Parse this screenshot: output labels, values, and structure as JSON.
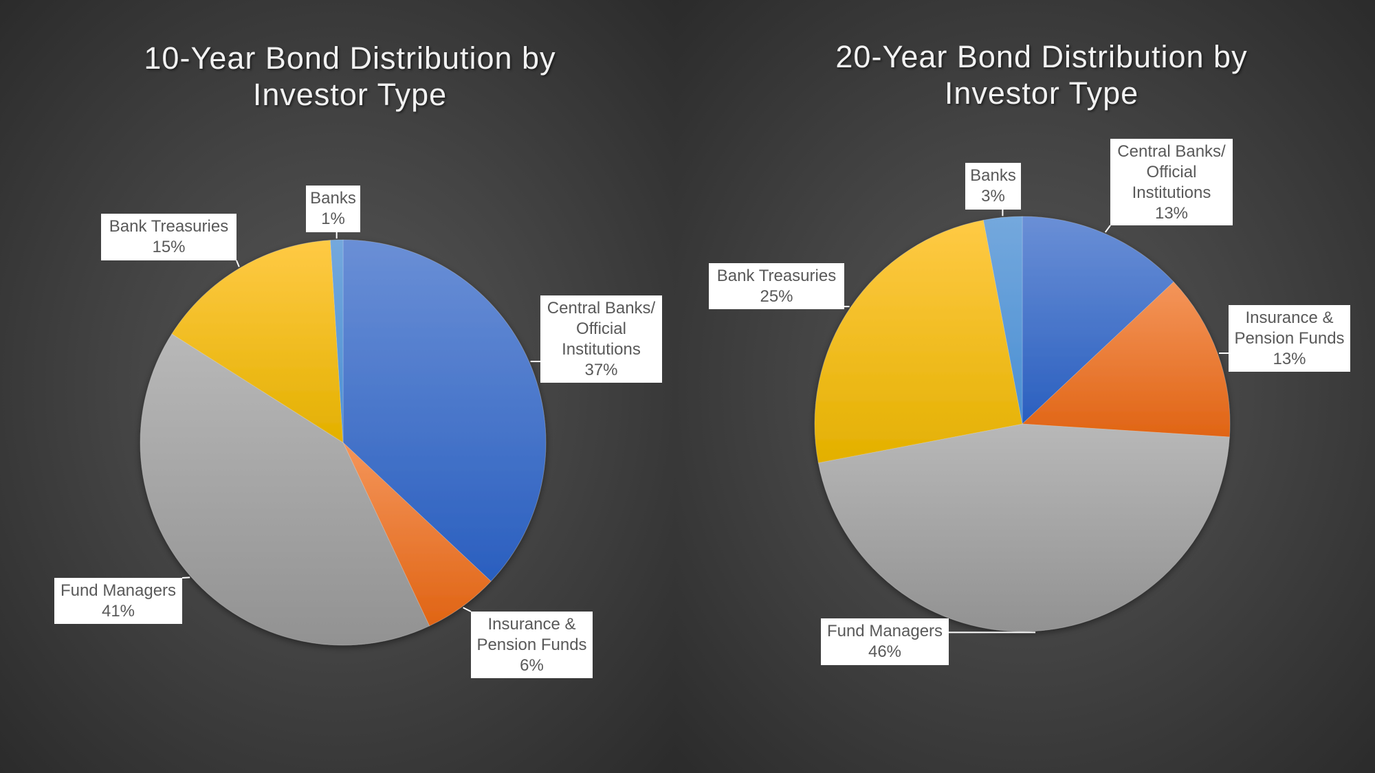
{
  "chart_data": [
    {
      "type": "pie",
      "title": "10-Year Bond Distribution by Investor Type",
      "title_lines": [
        "10-Year Bond Distribution by",
        "Investor Type"
      ],
      "categories": [
        "Central Banks/ Official Institutions",
        "Insurance & Pension Funds",
        "Fund Managers",
        "Bank Treasuries",
        "Banks"
      ],
      "values": [
        37,
        6,
        41,
        15,
        1
      ],
      "labels": [
        {
          "lines": [
            "Central Banks/",
            "Official",
            "Institutions"
          ],
          "pct": "37%"
        },
        {
          "lines": [
            "Insurance &",
            "Pension Funds"
          ],
          "pct": "6%"
        },
        {
          "lines": [
            "Fund Managers"
          ],
          "pct": "41%"
        },
        {
          "lines": [
            "Bank Treasuries"
          ],
          "pct": "15%"
        },
        {
          "lines": [
            "Banks"
          ],
          "pct": "1%"
        }
      ],
      "colors": [
        "#4472C4",
        "#ED7D31",
        "#A5A5A5",
        "#FFC000",
        "#5B9BD5"
      ],
      "start_angle": "12 o'clock, clockwise"
    },
    {
      "type": "pie",
      "title": "20-Year Bond Distribution by Investor Type",
      "title_lines": [
        "20-Year Bond Distribution by",
        "Investor Type"
      ],
      "categories": [
        "Central Banks/ Official Institutions",
        "Insurance & Pension Funds",
        "Fund Managers",
        "Bank Treasuries",
        "Banks"
      ],
      "values": [
        13,
        13,
        46,
        25,
        3
      ],
      "labels": [
        {
          "lines": [
            "Central Banks/",
            "Official",
            "Institutions"
          ],
          "pct": "13%"
        },
        {
          "lines": [
            "Insurance &",
            "Pension Funds"
          ],
          "pct": "13%"
        },
        {
          "lines": [
            "Fund Managers"
          ],
          "pct": "46%"
        },
        {
          "lines": [
            "Bank Treasuries"
          ],
          "pct": "25%"
        },
        {
          "lines": [
            "Banks"
          ],
          "pct": "3%"
        }
      ],
      "colors": [
        "#4472C4",
        "#ED7D31",
        "#A5A5A5",
        "#FFC000",
        "#5B9BD5"
      ],
      "start_angle": "12 o'clock, clockwise"
    }
  ]
}
